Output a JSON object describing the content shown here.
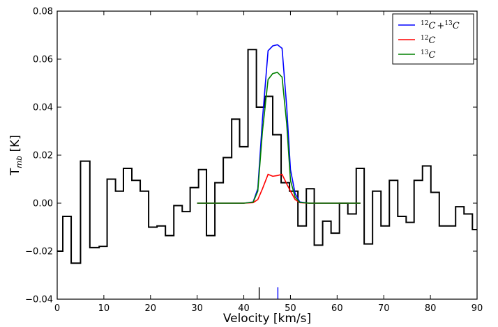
{
  "chart_data": {
    "type": "line",
    "title": "",
    "xlabel": "Velocity [km/s]",
    "ylabel": {
      "main": "T",
      "sub": "mb",
      "rest": " [K]"
    },
    "xlim": [
      0,
      90
    ],
    "ylim": [
      -0.04,
      0.08
    ],
    "xticks": [
      0,
      10,
      20,
      30,
      40,
      50,
      60,
      70,
      80,
      90
    ],
    "yticks": [
      -0.04,
      -0.02,
      0.0,
      0.02,
      0.04,
      0.06,
      0.08
    ],
    "ytick_labels": [
      "−0.04",
      "−0.02",
      "0.00",
      "0.02",
      "0.04",
      "0.06",
      "0.08"
    ],
    "xtick_labels": [
      "0",
      "10",
      "20",
      "30",
      "40",
      "50",
      "60",
      "70",
      "80",
      "90"
    ],
    "grid": false,
    "legend_position": "top-right",
    "observed": {
      "style": "step",
      "color": "#000000",
      "x": [
        0,
        1.2,
        3,
        5,
        7,
        9,
        10.7,
        12.5,
        14.2,
        16,
        17.8,
        19.6,
        21.4,
        23.2,
        25,
        26.8,
        28.5,
        30.3,
        32,
        33.8,
        35.6,
        37.4,
        39.1,
        40.9,
        42.7,
        44.5,
        46.2,
        48,
        49.8,
        51.6,
        53.4,
        55.1,
        56.9,
        58.7,
        60.5,
        62.3,
        64.1,
        65.8,
        67.6,
        69.4,
        71.2,
        73,
        74.8,
        76.5,
        78.3,
        80.1,
        81.9,
        83.6,
        85.4,
        87.2,
        89
      ],
      "y": [
        -0.02,
        -0.0055,
        -0.025,
        0.0175,
        -0.0185,
        -0.018,
        0.01,
        0.005,
        0.0145,
        0.0095,
        0.005,
        -0.01,
        -0.0095,
        -0.0135,
        -0.001,
        -0.0035,
        0.0065,
        0.014,
        -0.0135,
        0.0085,
        0.019,
        0.035,
        0.0235,
        0.064,
        0.04,
        0.0445,
        0.0285,
        0.0085,
        0.005,
        -0.0095,
        0.006,
        -0.0175,
        -0.0075,
        -0.0125,
        0.0,
        -0.0045,
        0.0145,
        -0.017,
        0.005,
        -0.0095,
        0.0095,
        -0.0055,
        -0.008,
        0.0095,
        0.0155,
        0.0045,
        -0.0095,
        -0.0095,
        -0.0015,
        -0.0045,
        -0.011
      ]
    },
    "series": [
      {
        "name": "${}^{12}C + {}^{13}C$",
        "label_parts": {
          "sup1": "12",
          "main1": "C",
          "plus": "+",
          "sup2": "13",
          "main2": "C"
        },
        "color": "#0000ff",
        "x": [
          30,
          40,
          42,
          43,
          44,
          45.2,
          46.2,
          47.2,
          48.2,
          49.2,
          50,
          51,
          52,
          54,
          65
        ],
        "y": [
          0.0,
          0.0,
          0.0005,
          0.006,
          0.035,
          0.0635,
          0.0655,
          0.066,
          0.0645,
          0.04,
          0.014,
          0.004,
          0.0005,
          0.0,
          0.0
        ]
      },
      {
        "name": "${}^{12}C$",
        "label_parts": {
          "sup": "12",
          "main": "C"
        },
        "color": "#ff0000",
        "x": [
          30,
          40,
          42,
          43,
          44,
          45.2,
          46.2,
          47.2,
          48.2,
          49.2,
          50,
          51,
          52,
          54,
          65
        ],
        "y": [
          0.0,
          0.0,
          0.0002,
          0.0015,
          0.006,
          0.012,
          0.0112,
          0.0115,
          0.012,
          0.008,
          0.005,
          0.0015,
          0.0002,
          0.0,
          0.0
        ]
      },
      {
        "name": "${}^{13}C$",
        "label_parts": {
          "sup": "13",
          "main": "C"
        },
        "color": "#008000",
        "x": [
          30,
          40,
          42,
          43,
          44,
          45.2,
          46.2,
          47.2,
          48.2,
          49.2,
          50,
          51,
          52,
          54,
          65
        ],
        "y": [
          0.0,
          0.0,
          0.0004,
          0.005,
          0.03,
          0.0515,
          0.054,
          0.0545,
          0.0525,
          0.033,
          0.0095,
          0.0025,
          0.0003,
          0.0,
          0.0
        ]
      }
    ],
    "markers": [
      {
        "x": 43.3,
        "color": "#000000"
      },
      {
        "x": 47.3,
        "color": "#0000ff"
      }
    ]
  }
}
